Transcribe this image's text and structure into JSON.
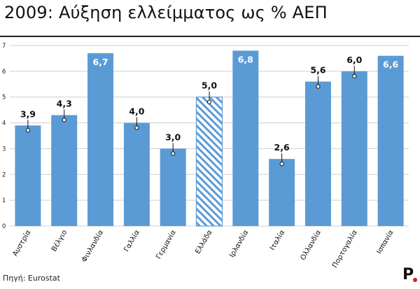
{
  "title": "2009: Αύξηση ελλείμματος ως % ΑΕΠ",
  "source": "Πηγή: Eurostat",
  "brand": {
    "logo_text": "P",
    "accent": "#d81e1e"
  },
  "colors": {
    "bar": "#5b9bd5",
    "hatch_bg": "#ffffff",
    "hatch_line": "#5b9bd5",
    "label_dark": "#111111",
    "label_light": "#ffffff",
    "gridline": "#cfcfcf"
  },
  "chart_data": {
    "type": "bar",
    "title": "2009: Αύξηση ελλείμματος ως % ΑΕΠ",
    "xlabel": "",
    "ylabel": "",
    "ylim": [
      0,
      7
    ],
    "yticks": [
      "0",
      "1",
      "2",
      "3",
      "4",
      "5",
      "6",
      "7"
    ],
    "grid": true,
    "categories": [
      "Αυστρία",
      "Βέλγιο",
      "Φινλανδία",
      "Γαλλία",
      "Γερμανία",
      "Ελλάδα",
      "Ιρλανδία",
      "Ιταλία",
      "Ολλανδία",
      "Πορτογαλία",
      "Ισπανία"
    ],
    "values": [
      3.9,
      4.3,
      6.7,
      4.0,
      3.0,
      5.0,
      6.8,
      2.6,
      5.6,
      6.0,
      6.6
    ],
    "value_labels": [
      "3,9",
      "4,3",
      "6,7",
      "4,0",
      "3,0",
      "5,0",
      "6,8",
      "2,6",
      "5,6",
      "6,0",
      "6,6"
    ],
    "label_inside": [
      false,
      false,
      true,
      false,
      false,
      false,
      true,
      false,
      false,
      false,
      true
    ],
    "highlighted": [
      false,
      false,
      false,
      false,
      false,
      true,
      false,
      false,
      false,
      false,
      false
    ]
  }
}
